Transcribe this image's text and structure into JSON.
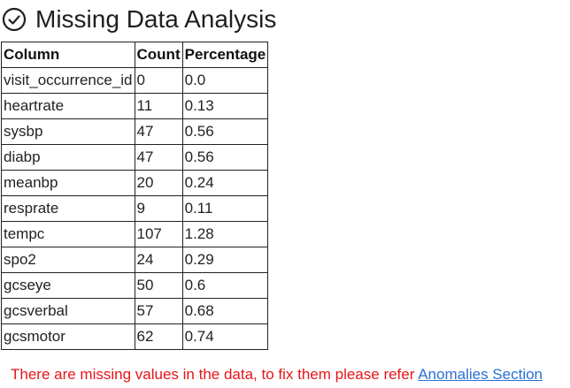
{
  "header": {
    "icon": "check-circle-icon",
    "title": "Missing Data Analysis"
  },
  "table": {
    "columns": [
      "Column",
      "Count",
      "Percentage"
    ],
    "rows": [
      {
        "column": "visit_occurrence_id",
        "count": "0",
        "percentage": "0.0"
      },
      {
        "column": "heartrate",
        "count": "11",
        "percentage": "0.13"
      },
      {
        "column": "sysbp",
        "count": "47",
        "percentage": "0.56"
      },
      {
        "column": "diabp",
        "count": "47",
        "percentage": "0.56"
      },
      {
        "column": "meanbp",
        "count": "20",
        "percentage": "0.24"
      },
      {
        "column": "resprate",
        "count": "9",
        "percentage": "0.11"
      },
      {
        "column": "tempc",
        "count": "107",
        "percentage": "1.28"
      },
      {
        "column": "spo2",
        "count": "24",
        "percentage": "0.29"
      },
      {
        "column": "gcseye",
        "count": "50",
        "percentage": "0.6"
      },
      {
        "column": "gcsverbal",
        "count": "57",
        "percentage": "0.68"
      },
      {
        "column": "gcsmotor",
        "count": "62",
        "percentage": "0.74"
      }
    ]
  },
  "footer": {
    "message": "There are missing values in the data, to fix them please refer",
    "link_label": "Anomalies Section"
  },
  "colors": {
    "message": "#e8141b",
    "link": "#2a6fd6"
  }
}
